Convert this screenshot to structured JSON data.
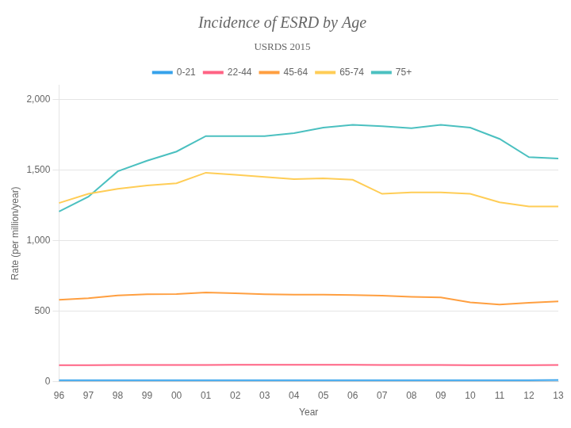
{
  "chart_data": {
    "type": "line",
    "title": "Incidence of ESRD by Age",
    "subtitle": "USRDS 2015",
    "x_label": "Year",
    "y_label": "Rate (per million/year)",
    "categories": [
      "96",
      "97",
      "98",
      "99",
      "00",
      "01",
      "02",
      "03",
      "04",
      "05",
      "06",
      "07",
      "08",
      "09",
      "10",
      "11",
      "12",
      "13"
    ],
    "series": [
      {
        "name": "0-21",
        "values": [
          8,
          8,
          8,
          8,
          8,
          8,
          8,
          8,
          8,
          8,
          8,
          8,
          8,
          8,
          8,
          8,
          8,
          10
        ]
      },
      {
        "name": "22-44",
        "values": [
          115,
          115,
          117,
          117,
          117,
          117,
          118,
          118,
          118,
          118,
          118,
          117,
          116,
          116,
          115,
          115,
          115,
          116
        ]
      },
      {
        "name": "45-64",
        "values": [
          578,
          590,
          610,
          618,
          620,
          630,
          625,
          618,
          615,
          615,
          612,
          608,
          600,
          595,
          560,
          545,
          558,
          568
        ]
      },
      {
        "name": "65-74",
        "values": [
          1265,
          1330,
          1365,
          1390,
          1405,
          1480,
          1465,
          1450,
          1435,
          1440,
          1430,
          1330,
          1340,
          1340,
          1330,
          1270,
          1240,
          1240
        ]
      },
      {
        "name": "75+",
        "values": [
          1205,
          1310,
          1490,
          1565,
          1630,
          1740,
          1740,
          1740,
          1760,
          1800,
          1820,
          1810,
          1795,
          1820,
          1800,
          1720,
          1590,
          1580
        ]
      }
    ],
    "ylim": [
      0,
      2100
    ],
    "yticks": [
      0,
      500,
      1000,
      1500,
      2000
    ],
    "grid": "y",
    "legend": "top"
  }
}
